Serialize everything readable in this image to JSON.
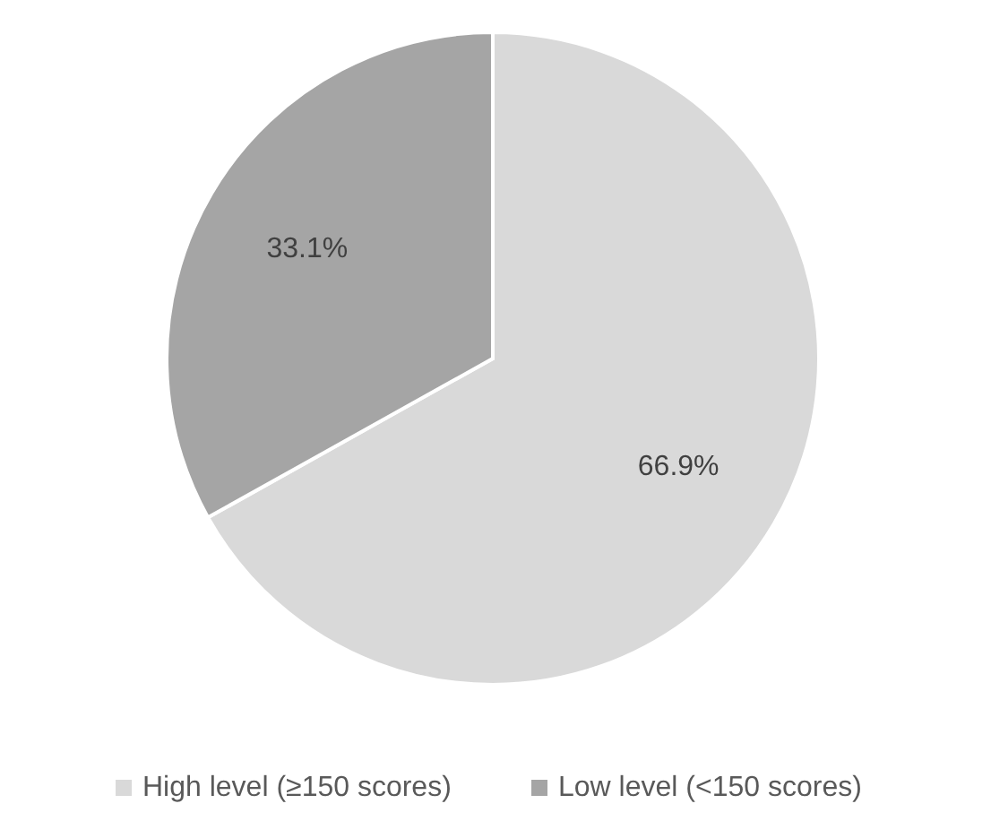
{
  "chart_data": {
    "type": "pie",
    "categories": [
      "High level (≥150 scores)",
      "Low level (<150 scores)"
    ],
    "values": [
      66.9,
      33.1
    ],
    "colors": [
      "#d9d9d9",
      "#a5a5a5"
    ],
    "value_labels": [
      "66.9%",
      "33.1%"
    ],
    "legend": "bottom"
  }
}
